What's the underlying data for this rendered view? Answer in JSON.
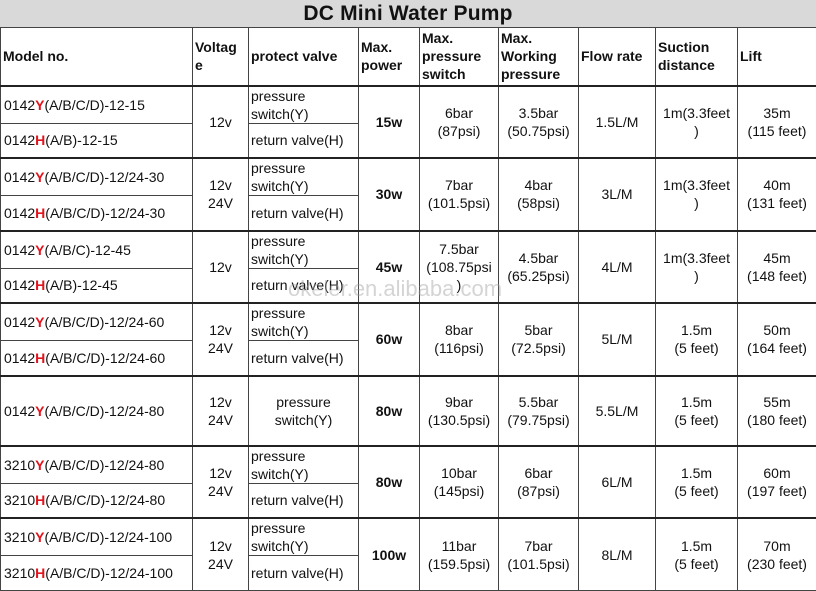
{
  "title": "DC Mini Water Pump",
  "headers": {
    "model": "Model no.",
    "voltage": "Voltag\ne",
    "valve": "protect valve",
    "power": "Max.\npower",
    "pressure_switch": "Max.\npressure\nswitch",
    "working": "Max.\nWorking\npressure",
    "flow": "Flow rate",
    "suction": "Suction\ndistance",
    "lift": "Lift"
  },
  "colors": {
    "Y": "#e0141e",
    "H": "#e0141e"
  },
  "groups": [
    {
      "models": [
        {
          "prefix": "0142",
          "letter": "Y",
          "suffix": "(A/B/C/D)-12-15"
        },
        {
          "prefix": "0142",
          "letter": "H",
          "suffix": "(A/B)-12-15"
        }
      ],
      "voltage": "12v",
      "valves": [
        "pressure\nswitch(Y)",
        "return valve(H)"
      ],
      "power": "15w",
      "pressure_switch": "6bar\n(87psi)",
      "working": "3.5bar\n(50.75psi)",
      "flow": "1.5L/M",
      "suction": "1m(3.3feet\n)",
      "lift": "35m\n(115 feet)"
    },
    {
      "models": [
        {
          "prefix": "0142",
          "letter": "Y",
          "suffix": "(A/B/C/D)-12/24-30"
        },
        {
          "prefix": "0142",
          "letter": "H",
          "suffix": "(A/B/C/D)-12/24-30"
        }
      ],
      "voltage": "12v\n24V",
      "valves": [
        "pressure\nswitch(Y)",
        "return valve(H)"
      ],
      "power": "30w",
      "pressure_switch": "7bar\n(101.5psi)",
      "working": "4bar\n(58psi)",
      "flow": "3L/M",
      "suction": "1m(3.3feet\n)",
      "lift": "40m\n(131 feet)"
    },
    {
      "models": [
        {
          "prefix": "0142",
          "letter": "Y",
          "suffix": "(A/B/C)-12-45"
        },
        {
          "prefix": "0142",
          "letter": "H",
          "suffix": "(A/B)-12-45"
        }
      ],
      "voltage": "12v",
      "valves": [
        "pressure\nswitch(Y)",
        "return valve(H)"
      ],
      "power": "45w",
      "pressure_switch": "7.5bar\n(108.75psi\n)",
      "working": "4.5bar\n(65.25psi)",
      "flow": "4L/M",
      "suction": "1m(3.3feet\n)",
      "lift": "45m\n(148 feet)"
    },
    {
      "models": [
        {
          "prefix": "0142",
          "letter": "Y",
          "suffix": "(A/B/C/D)-12/24-60"
        },
        {
          "prefix": "0142",
          "letter": "H",
          "suffix": "(A/B/C/D)-12/24-60"
        }
      ],
      "voltage": "12v\n24V",
      "valves": [
        "pressure\nswitch(Y)",
        "return valve(H)"
      ],
      "power": "60w",
      "pressure_switch": "8bar\n(116psi)",
      "working": "5bar\n(72.5psi)",
      "flow": "5L/M",
      "suction": "1.5m\n(5 feet)",
      "lift": "50m\n(164 feet)"
    },
    {
      "models": [
        {
          "prefix": "0142",
          "letter": "Y",
          "suffix": "(A/B/C/D)-12/24-80"
        }
      ],
      "voltage": "12v\n24V",
      "valves": [
        "pressure\nswitch(Y)"
      ],
      "power": "80w",
      "pressure_switch": "9bar\n(130.5psi)",
      "working": "5.5bar\n(79.75psi)",
      "flow": "5.5L/M",
      "suction": "1.5m\n(5 feet)",
      "lift": "55m\n(180 feet)"
    },
    {
      "models": [
        {
          "prefix": "3210",
          "letter": "Y",
          "suffix": "(A/B/C/D)-12/24-80"
        },
        {
          "prefix": "3210",
          "letter": "H",
          "suffix": "(A/B/C/D)-12/24-80"
        }
      ],
      "voltage": "12v\n24V",
      "valves": [
        "pressure\nswitch(Y)",
        "return valve(H)"
      ],
      "power": "80w",
      "pressure_switch": "10bar\n(145psi)",
      "working": "6bar\n(87psi)",
      "flow": "6L/M",
      "suction": "1.5m\n(5 feet)",
      "lift": "60m\n(197 feet)"
    },
    {
      "models": [
        {
          "prefix": "3210",
          "letter": "Y",
          "suffix": "(A/B/C/D)-12/24-100"
        },
        {
          "prefix": "3210",
          "letter": "H",
          "suffix": "(A/B/C/D)-12/24-100"
        }
      ],
      "voltage": "12v\n24V",
      "valves": [
        "pressure\nswitch(Y)",
        "return valve(H)"
      ],
      "power": "100w",
      "pressure_switch": "11bar\n(159.5psi)",
      "working": "7bar\n(101.5psi)",
      "flow": "8L/M",
      "suction": "1.5m\n(5 feet)",
      "lift": "70m\n(230 feet)"
    }
  ],
  "watermark": "okeler.en.alibaba.com"
}
